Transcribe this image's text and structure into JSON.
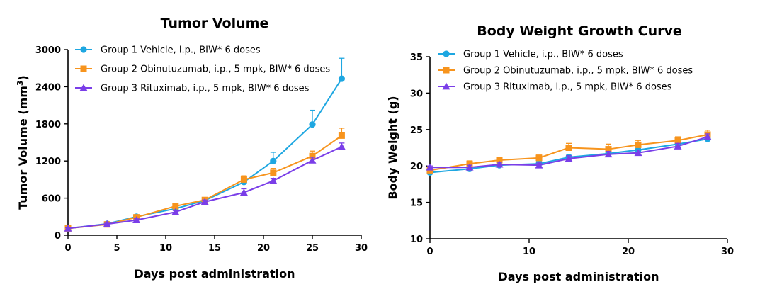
{
  "chart_data": [
    {
      "type": "line",
      "title": "Tumor Volume",
      "xlabel": "Days post administration",
      "ylabel_main": "Tumor Volume (mm",
      "ylabel_sup": "3",
      "ylabel_close": ")",
      "xlim": [
        0,
        30
      ],
      "ylim": [
        0,
        3000
      ],
      "xticks": [
        0,
        5,
        10,
        15,
        20,
        25,
        30
      ],
      "yticks": [
        0,
        600,
        1200,
        1800,
        2400,
        3000
      ],
      "legend_position": "top-left",
      "grid": false,
      "series": [
        {
          "name": "Group 1 Vehicle, i.p., BIW* 6 doses",
          "color": "#1ea7e1",
          "marker": "circle",
          "x": [
            0,
            4,
            7,
            11,
            14,
            18,
            21,
            25,
            28
          ],
          "y": [
            110,
            185,
            300,
            430,
            560,
            860,
            1200,
            1790,
            2530
          ],
          "err": [
            15,
            20,
            25,
            30,
            35,
            60,
            140,
            230,
            330
          ]
        },
        {
          "name": "Group 2 Obinutuzumab, i.p., 5 mpk, BIW* 6 doses",
          "color": "#f7941d",
          "marker": "square",
          "x": [
            0,
            4,
            7,
            11,
            14,
            18,
            21,
            25,
            28
          ],
          "y": [
            110,
            175,
            290,
            470,
            570,
            900,
            1010,
            1280,
            1610
          ],
          "err": [
            12,
            18,
            22,
            30,
            35,
            60,
            70,
            80,
            120
          ]
        },
        {
          "name": "Group 3 Rituximab, i.p., 5 mpk, BIW* 6 doses",
          "color": "#7a3ee8",
          "marker": "triangle",
          "x": [
            0,
            4,
            7,
            11,
            14,
            18,
            21,
            25,
            28
          ],
          "y": [
            110,
            180,
            245,
            375,
            540,
            690,
            880,
            1210,
            1430
          ],
          "err": [
            12,
            15,
            20,
            25,
            30,
            60,
            40,
            50,
            60
          ]
        }
      ]
    },
    {
      "type": "line",
      "title": "Body Weight Growth Curve",
      "xlabel": "Days post administration",
      "ylabel": "Body Weight (g)",
      "xlim": [
        0,
        30
      ],
      "ylim": [
        10,
        35
      ],
      "xticks": [
        0,
        10,
        20,
        30
      ],
      "yticks": [
        10,
        15,
        20,
        25,
        30,
        35
      ],
      "legend_position": "top-left",
      "grid": false,
      "series": [
        {
          "name": "Group 1 Vehicle, i.p., BIW* 6 doses",
          "color": "#1ea7e1",
          "marker": "circle",
          "x": [
            0,
            4,
            7,
            11,
            14,
            18,
            21,
            25,
            28
          ],
          "y": [
            19.1,
            19.6,
            20.1,
            20.3,
            21.2,
            21.7,
            22.2,
            23.0,
            23.7
          ],
          "err": [
            0.3,
            0.3,
            0.3,
            0.3,
            0.4,
            0.3,
            0.4,
            0.4,
            0.4
          ]
        },
        {
          "name": "Group 2 Obinutuzumab, i.p., 5 mpk, BIW* 6 doses",
          "color": "#f7941d",
          "marker": "square",
          "x": [
            0,
            4,
            7,
            11,
            14,
            18,
            21,
            25,
            28
          ],
          "y": [
            19.4,
            20.3,
            20.8,
            21.1,
            22.5,
            22.3,
            22.9,
            23.5,
            24.3
          ],
          "err": [
            0.3,
            0.4,
            0.4,
            0.4,
            0.6,
            0.7,
            0.6,
            0.5,
            0.6
          ]
        },
        {
          "name": "Group 3 Rituximab, i.p., 5 mpk, BIW* 6 doses",
          "color": "#7a3ee8",
          "marker": "triangle",
          "x": [
            0,
            4,
            7,
            11,
            14,
            18,
            21,
            25,
            28
          ],
          "y": [
            19.8,
            19.8,
            20.2,
            20.1,
            21.0,
            21.6,
            21.8,
            22.7,
            24.0
          ],
          "err": [
            0.2,
            0.3,
            0.3,
            0.3,
            0.4,
            0.4,
            0.4,
            0.4,
            0.4
          ]
        }
      ]
    }
  ]
}
